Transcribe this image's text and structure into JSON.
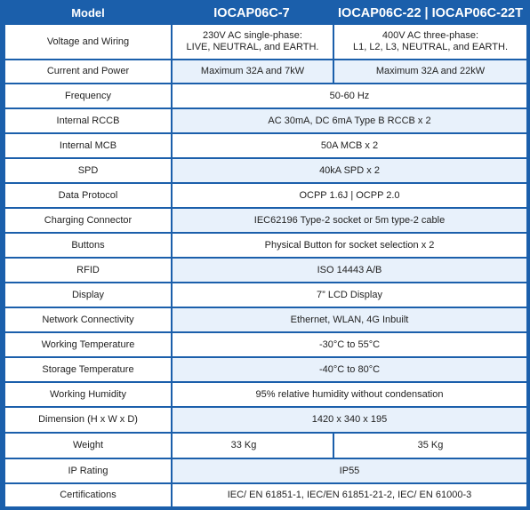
{
  "header": {
    "model_label": "Model",
    "model_1": "IOCAP06C-7",
    "model_2": "IOCAP06C-22 | IOCAP06C-22T"
  },
  "rows": [
    {
      "name": "voltage-and-wiring",
      "label": "Voltage and Wiring",
      "split": true,
      "value_1": "230V AC single-phase:\nLIVE, NEUTRAL, and EARTH.",
      "value_2": "400V AC three-phase:\nL1, L2, L3, NEUTRAL, and EARTH."
    },
    {
      "name": "current-and-power",
      "label": "Current and Power",
      "split": true,
      "value_1": "Maximum 32A and 7kW",
      "value_2": "Maximum 32A and 22kW"
    },
    {
      "name": "frequency",
      "label": "Frequency",
      "value": "50-60 Hz"
    },
    {
      "name": "internal-rccb",
      "label": "Internal RCCB",
      "value": "AC 30mA, DC 6mA Type B RCCB x 2"
    },
    {
      "name": "internal-mcb",
      "label": "Internal MCB",
      "value": "50A MCB x 2"
    },
    {
      "name": "spd",
      "label": "SPD",
      "value": "40kA SPD x 2"
    },
    {
      "name": "data-protocol",
      "label": "Data Protocol",
      "value": "OCPP 1.6J | OCPP 2.0"
    },
    {
      "name": "charging-connector",
      "label": "Charging Connector",
      "value": "IEC62196 Type-2 socket or 5m type-2 cable"
    },
    {
      "name": "buttons",
      "label": "Buttons",
      "value": "Physical Button for socket selection x 2"
    },
    {
      "name": "rfid",
      "label": "RFID",
      "value": "ISO 14443 A/B"
    },
    {
      "name": "display",
      "label": "Display",
      "value": "7” LCD Display"
    },
    {
      "name": "network-connectivity",
      "label": "Network Connectivity",
      "value": "Ethernet, WLAN, 4G Inbuilt"
    },
    {
      "name": "working-temperature",
      "label": "Working Temperature",
      "value": "-30°C to 55°C"
    },
    {
      "name": "storage-temperature",
      "label": "Storage Temperature",
      "value": "-40°C to 80°C"
    },
    {
      "name": "working-humidity",
      "label": "Working Humidity",
      "value": "95% relative humidity without condensation"
    },
    {
      "name": "dimension",
      "label": "Dimension (H x W x D)",
      "value": "1420 x 340 x 195"
    },
    {
      "name": "weight",
      "label": "Weight",
      "split": true,
      "value_1": "33 Kg",
      "value_2": "35 Kg"
    },
    {
      "name": "ip-rating",
      "label": "IP Rating",
      "value": "IP55"
    },
    {
      "name": "certifications",
      "label": "Certifications",
      "value": "IEC/ EN 61851-1, IEC/EN 61851-21-2, IEC/ EN 61000-3"
    }
  ]
}
